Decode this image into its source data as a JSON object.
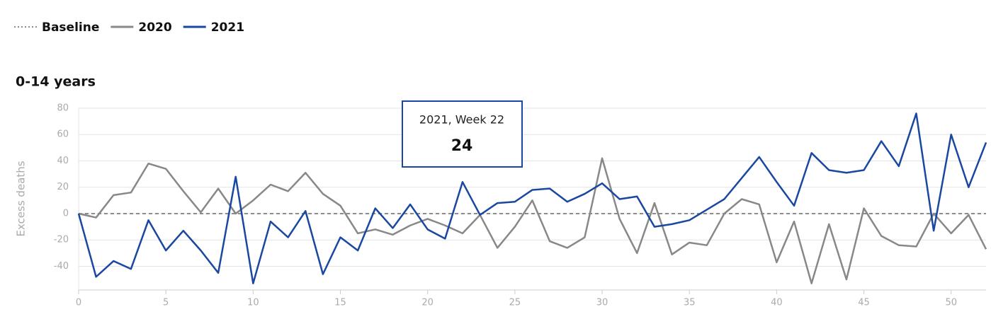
{
  "chart_data": {
    "type": "line",
    "title": "0-14 years",
    "ylabel": "Excess deaths",
    "baseline": {
      "name": "Baseline",
      "value": 0,
      "color": "#666666"
    },
    "tooltip": {
      "title": "2021, Week 22",
      "series": 1,
      "index": 22
    },
    "x": [
      0,
      1,
      2,
      3,
      4,
      5,
      6,
      7,
      8,
      9,
      10,
      11,
      12,
      13,
      14,
      15,
      16,
      17,
      18,
      19,
      20,
      21,
      22,
      23,
      24,
      25,
      26,
      27,
      28,
      29,
      30,
      31,
      32,
      33,
      34,
      35,
      36,
      37,
      38,
      39,
      40,
      41,
      42,
      43,
      44,
      45,
      46,
      47,
      48,
      49,
      50,
      51,
      52
    ],
    "series": [
      {
        "name": "2020",
        "color": "#888888",
        "values": [
          0,
          -3,
          14,
          16,
          38,
          34,
          17,
          1,
          19,
          0,
          10,
          22,
          17,
          31,
          15,
          6,
          -15,
          -12,
          -16,
          -9,
          -4,
          -9,
          -15,
          -1,
          -26,
          -10,
          10,
          -21,
          -26,
          -18,
          42,
          -4,
          -30,
          8,
          -31,
          -22,
          -24,
          0,
          11,
          7,
          -37,
          -6,
          -53,
          -8,
          -50,
          4,
          -17,
          -24,
          -25,
          0,
          -15,
          -1,
          -27
        ]
      },
      {
        "name": "2021",
        "color": "#1a47a0",
        "values": [
          0,
          -48,
          -36,
          -42,
          -5,
          -28,
          -13,
          -28,
          -45,
          28,
          -53,
          -6,
          -18,
          2,
          -46,
          -18,
          -28,
          4,
          -11,
          7,
          -12,
          -19,
          24,
          -1,
          8,
          9,
          18,
          19,
          9,
          15,
          23,
          11,
          13,
          -10,
          -8,
          -5,
          3,
          11,
          27,
          43,
          24,
          6,
          46,
          33,
          31,
          33,
          55,
          36,
          76,
          -13,
          60,
          20,
          54
        ]
      }
    ],
    "xlim": [
      0,
      52
    ],
    "xticks": [
      0,
      5,
      10,
      15,
      20,
      25,
      30,
      35,
      40,
      45,
      50
    ],
    "ylim": [
      -58,
      80
    ],
    "yticks": [
      -40,
      -20,
      0,
      20,
      40,
      60,
      80
    ],
    "grid": true
  }
}
